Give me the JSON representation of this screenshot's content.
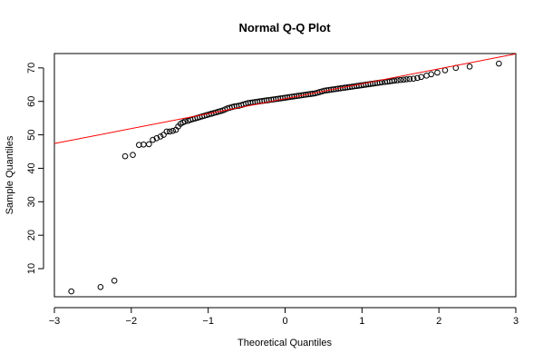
{
  "chart_data": {
    "type": "scatter",
    "title": "Normal Q-Q Plot",
    "xlabel": "Theoretical Quantiles",
    "ylabel": "Sample Quantiles",
    "xlim": [
      -3,
      3
    ],
    "ylim": [
      1.6,
      74.3
    ],
    "x_ticks": [
      -3,
      -2,
      -1,
      0,
      1,
      2,
      3
    ],
    "x_tick_labels": [
      "−3",
      "−2",
      "−1",
      "0",
      "1",
      "2",
      "3"
    ],
    "y_ticks": [
      10,
      20,
      30,
      40,
      50,
      60,
      70
    ],
    "y_tick_labels": [
      "10",
      "20",
      "30",
      "40",
      "50",
      "60",
      "70"
    ],
    "grid": false,
    "legend": "none",
    "colors": {
      "points": "#000000",
      "reference_line": "#ff0000"
    },
    "reference_line": {
      "x": [
        -3,
        3
      ],
      "y": [
        47.4,
        74.2
      ]
    },
    "points": {
      "x": [
        -2.78,
        -2.4,
        -2.22,
        -2.08,
        -1.98,
        -1.9,
        -1.84,
        -1.77,
        -1.72,
        -1.67,
        -1.62,
        -1.58,
        -1.54,
        -1.5,
        -1.46,
        -1.42,
        -1.39,
        -1.36,
        -1.33,
        -1.3,
        -1.26,
        -1.23,
        -1.2,
        -1.17,
        -1.14,
        -1.11,
        -1.08,
        -1.05,
        -1.02,
        -0.99,
        -0.96,
        -0.93,
        -0.9,
        -0.87,
        -0.84,
        -0.81,
        -0.78,
        -0.75,
        -0.72,
        -0.69,
        -0.66,
        -0.63,
        -0.6,
        -0.57,
        -0.54,
        -0.51,
        -0.48,
        -0.45,
        -0.42,
        -0.39,
        -0.36,
        -0.33,
        -0.3,
        -0.27,
        -0.24,
        -0.21,
        -0.18,
        -0.15,
        -0.12,
        -0.09,
        -0.06,
        -0.03,
        0.0,
        0.03,
        0.06,
        0.09,
        0.12,
        0.15,
        0.18,
        0.21,
        0.24,
        0.27,
        0.3,
        0.33,
        0.36,
        0.39,
        0.42,
        0.45,
        0.48,
        0.51,
        0.54,
        0.57,
        0.6,
        0.63,
        0.66,
        0.69,
        0.72,
        0.75,
        0.78,
        0.81,
        0.84,
        0.87,
        0.9,
        0.93,
        0.96,
        0.99,
        1.02,
        1.05,
        1.08,
        1.11,
        1.14,
        1.17,
        1.2,
        1.23,
        1.26,
        1.3,
        1.33,
        1.36,
        1.39,
        1.42,
        1.46,
        1.5,
        1.54,
        1.58,
        1.62,
        1.67,
        1.72,
        1.77,
        1.84,
        1.9,
        1.98,
        2.08,
        2.22,
        2.4,
        2.78
      ],
      "y": [
        3.2,
        4.5,
        6.4,
        43.6,
        44.0,
        47.0,
        47.1,
        47.2,
        48.5,
        49.0,
        49.5,
        50.0,
        51.0,
        51.0,
        51.2,
        51.5,
        52.5,
        53.3,
        53.7,
        54.0,
        54.2,
        54.5,
        54.7,
        54.9,
        55.1,
        55.3,
        55.5,
        55.7,
        55.9,
        56.1,
        56.3,
        56.5,
        56.7,
        56.9,
        57.1,
        57.3,
        57.6,
        57.9,
        58.1,
        58.3,
        58.5,
        58.6,
        58.7,
        58.9,
        59.1,
        59.3,
        59.5,
        59.6,
        59.7,
        59.8,
        59.9,
        60.0,
        60.1,
        60.2,
        60.3,
        60.4,
        60.5,
        60.6,
        60.7,
        60.8,
        60.9,
        61.0,
        61.1,
        61.2,
        61.3,
        61.4,
        61.5,
        61.6,
        61.7,
        61.8,
        61.9,
        62.0,
        62.1,
        62.2,
        62.3,
        62.4,
        62.6,
        62.8,
        63.0,
        63.2,
        63.3,
        63.4,
        63.5,
        63.6,
        63.7,
        63.8,
        63.9,
        64.0,
        64.1,
        64.2,
        64.3,
        64.4,
        64.5,
        64.6,
        64.7,
        64.8,
        64.9,
        65.0,
        65.1,
        65.2,
        65.3,
        65.4,
        65.5,
        65.6,
        65.7,
        65.8,
        65.9,
        66.0,
        66.1,
        66.2,
        66.3,
        66.4,
        66.5,
        66.6,
        66.7,
        66.8,
        67.0,
        67.3,
        67.7,
        68.1,
        68.6,
        69.3,
        70.0,
        70.4,
        71.3
      ]
    }
  }
}
